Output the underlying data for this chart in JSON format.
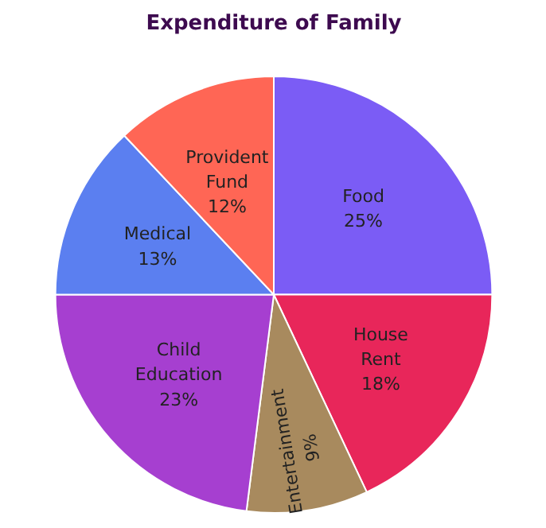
{
  "chart_data": {
    "type": "pie",
    "title": "Expenditure of Family",
    "categories": [
      "Food",
      "House Rent",
      "Entertainment",
      "Child Education",
      "Medical",
      "Provident Fund"
    ],
    "values": [
      25,
      18,
      9,
      23,
      13,
      12
    ],
    "value_labels": [
      "25%",
      "18%",
      "9%",
      "23%",
      "13%",
      "12%"
    ],
    "colors": [
      "#7b5cf5",
      "#e8265a",
      "#a88a5e",
      "#a63fd0",
      "#5b7ff0",
      "#ff6655"
    ]
  }
}
